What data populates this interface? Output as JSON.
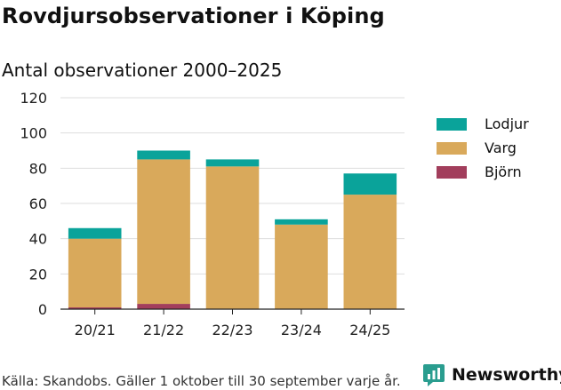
{
  "title": "Rovdjursobservationer i Köping",
  "subtitle": "Antal observationer 2000–2025",
  "source": "Källa: Skandobs. Gäller 1 oktober till 30 september varje år.",
  "brand": {
    "name": "Newsworthy",
    "color": "#2a9d8f",
    "icon": "newsworthy-logo-icon"
  },
  "chart_data": {
    "type": "bar",
    "stacked": true,
    "categories": [
      "20/21",
      "21/22",
      "22/23",
      "23/24",
      "24/25"
    ],
    "series": [
      {
        "name": "Björn",
        "color": "#a23e5c",
        "values": [
          1,
          3,
          0,
          0,
          0
        ]
      },
      {
        "name": "Varg",
        "color": "#d9a95b",
        "values": [
          39,
          82,
          81,
          48,
          65
        ]
      },
      {
        "name": "Lodjur",
        "color": "#0aa39a",
        "values": [
          6,
          5,
          4,
          3,
          12
        ]
      }
    ],
    "yticks": [
      0,
      20,
      40,
      60,
      80,
      100,
      120
    ],
    "ylim": [
      0,
      120
    ],
    "grid": true,
    "legend": "right",
    "legend_order": [
      "Lodjur",
      "Varg",
      "Björn"
    ]
  }
}
